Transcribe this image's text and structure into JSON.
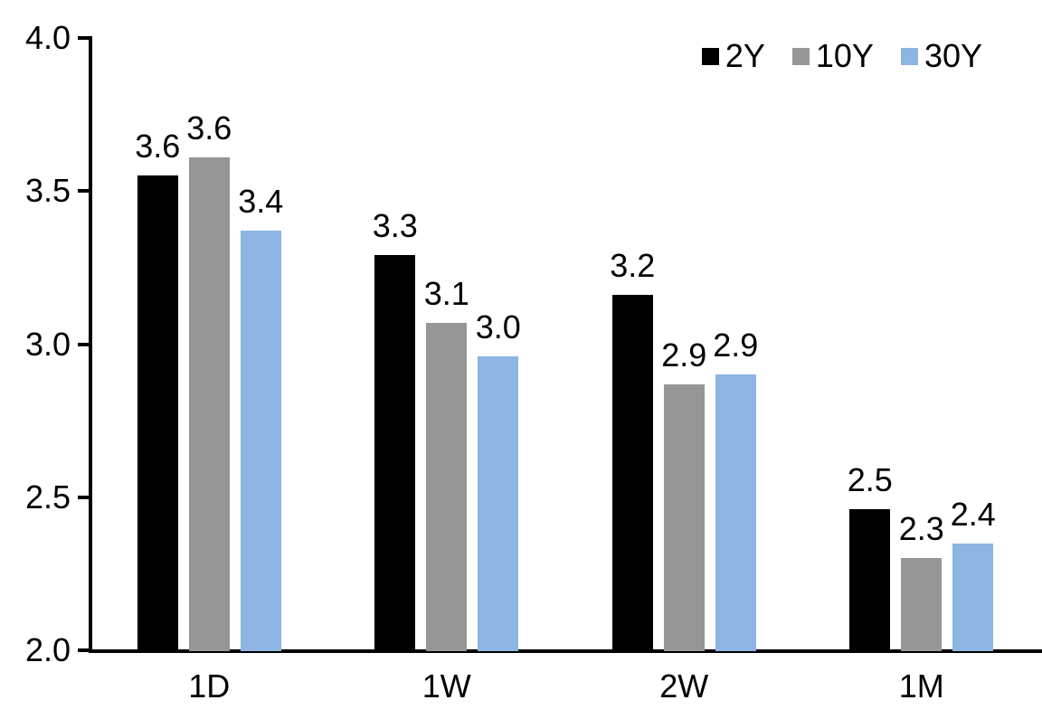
{
  "chart_data": {
    "type": "bar",
    "title": "",
    "xlabel": "",
    "ylabel": "",
    "categories": [
      "1D",
      "1W",
      "2W",
      "1M"
    ],
    "series": [
      {
        "name": "2Y",
        "color": "#000000",
        "values": [
          3.55,
          3.29,
          3.16,
          2.46
        ],
        "labels": [
          "3.6",
          "3.3",
          "3.2",
          "2.5"
        ]
      },
      {
        "name": "10Y",
        "color": "#969696",
        "values": [
          3.61,
          3.07,
          2.87,
          2.3
        ],
        "labels": [
          "3.6",
          "3.1",
          "2.9",
          "2.3"
        ]
      },
      {
        "name": "30Y",
        "color": "#8DB4E2",
        "values": [
          3.37,
          2.96,
          2.9,
          2.35
        ],
        "labels": [
          "3.4",
          "3.0",
          "2.9",
          "2.4"
        ]
      }
    ],
    "y_axis": {
      "min": 2.0,
      "max": 4.0,
      "tick_values": [
        4.0,
        3.5,
        3.0,
        2.5,
        2.0
      ],
      "tick_labels": [
        "4.0",
        "3.5",
        "3.0",
        "2.5",
        "2.0"
      ]
    },
    "legend_position": "top-right",
    "grid": false,
    "background_color": "#FFFFFF",
    "axis_color": "#000000"
  }
}
